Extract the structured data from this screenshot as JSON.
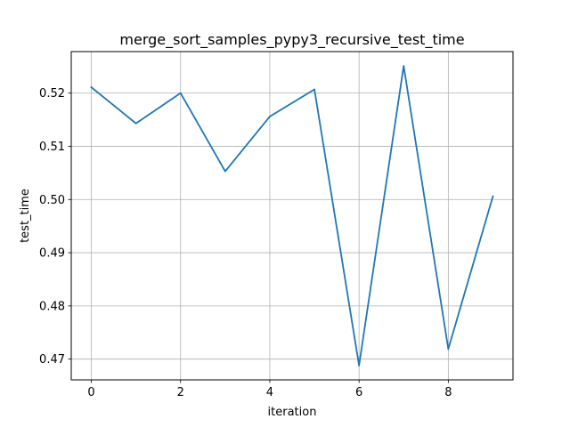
{
  "chart_data": {
    "type": "line",
    "title": "merge_sort_samples_pypy3_recursive_test_time",
    "xlabel": "iteration",
    "ylabel": "test_time",
    "x": [
      0,
      1,
      2,
      3,
      4,
      5,
      6,
      7,
      8,
      9
    ],
    "series": [
      {
        "values": [
          0.5211,
          0.5143,
          0.52,
          0.5053,
          0.5156,
          0.5207,
          0.4688,
          0.5251,
          0.4719,
          0.5006
        ],
        "color": "#1f77b4"
      }
    ],
    "xlim": [
      -0.45,
      9.45
    ],
    "ylim": [
      0.4661,
      0.5278
    ],
    "xticks": [
      0,
      2,
      4,
      6,
      8
    ],
    "yticks": [
      0.47,
      0.48,
      0.49,
      0.5,
      0.51,
      0.52
    ],
    "xtick_labels": [
      "0",
      "2",
      "4",
      "6",
      "8"
    ],
    "ytick_labels": [
      "0.47",
      "0.48",
      "0.49",
      "0.50",
      "0.51",
      "0.52"
    ],
    "grid": true
  }
}
